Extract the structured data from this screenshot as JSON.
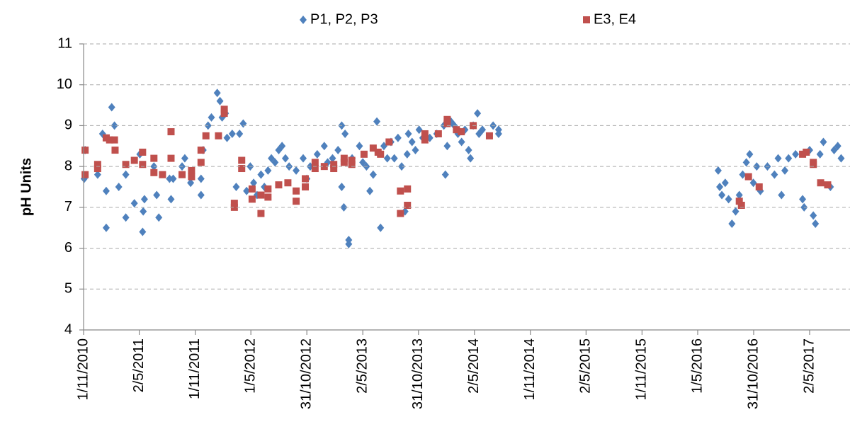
{
  "chart_data": {
    "type": "scatter",
    "ylabel": "pH Units",
    "ylim": [
      4,
      11
    ],
    "yticks": [
      4,
      5,
      6,
      7,
      8,
      9,
      10,
      11
    ],
    "xlim": [
      "2010-11-01",
      "2017-09-11"
    ],
    "xticks": [
      {
        "value": "2010-11-01",
        "label": "1/11/2010"
      },
      {
        "value": "2011-05-02",
        "label": "2/5/2011"
      },
      {
        "value": "2011-11-01",
        "label": "1/11/2011"
      },
      {
        "value": "2012-05-01",
        "label": "1/5/2012"
      },
      {
        "value": "2012-10-31",
        "label": "31/10/2012"
      },
      {
        "value": "2013-05-02",
        "label": "2/5/2013"
      },
      {
        "value": "2013-10-31",
        "label": "31/10/2013"
      },
      {
        "value": "2014-05-02",
        "label": "2/5/2014"
      },
      {
        "value": "2014-11-01",
        "label": "1/11/2014"
      },
      {
        "value": "2015-05-02",
        "label": "2/5/2015"
      },
      {
        "value": "2015-11-01",
        "label": "1/11/2015"
      },
      {
        "value": "2016-05-01",
        "label": "1/5/2016"
      },
      {
        "value": "2016-10-31",
        "label": "31/10/2016"
      },
      {
        "value": "2017-05-02",
        "label": "2/5/2017"
      }
    ],
    "grid": true,
    "legend": "top",
    "series": [
      {
        "name": "P1, P2, P3",
        "color": "#4f81bd",
        "marker": "diamond",
        "x": [
          "2010-11-06",
          "2010-11-03",
          "2010-12-17",
          "2011-01-02",
          "2011-01-14",
          "2011-01-14",
          "2011-02-01",
          "2011-02-10",
          "2011-02-24",
          "2011-03-19",
          "2011-03-19",
          "2011-04-16",
          "2011-05-04",
          "2011-05-13",
          "2011-05-15",
          "2011-05-19",
          "2011-06-19",
          "2011-06-28",
          "2011-07-05",
          "2011-08-09",
          "2011-08-14",
          "2011-08-21",
          "2011-09-19",
          "2011-09-28",
          "2011-10-17",
          "2011-11-20",
          "2011-11-20",
          "2011-11-27",
          "2011-12-13",
          "2011-12-24",
          "2012-01-12",
          "2012-01-21",
          "2012-01-28",
          "2012-02-08",
          "2012-02-13",
          "2012-03-01",
          "2012-03-14",
          "2012-03-25",
          "2012-04-06",
          "2012-04-17",
          "2012-04-29",
          "2012-05-10",
          "2012-05-21",
          "2012-06-03",
          "2012-06-14",
          "2012-06-26",
          "2012-07-07",
          "2012-07-19",
          "2012-07-31",
          "2012-08-11",
          "2012-08-22",
          "2012-09-03",
          "2012-09-26",
          "2012-10-19",
          "2012-10-31",
          "2012-11-11",
          "2012-12-04",
          "2012-12-27",
          "2013-01-07",
          "2013-01-23",
          "2013-02-10",
          "2013-02-22",
          "2013-02-22",
          "2013-03-01",
          "2013-03-05",
          "2013-03-17",
          "2013-03-17",
          "2013-03-28",
          "2013-04-21",
          "2013-05-02",
          "2013-05-14",
          "2013-05-25",
          "2013-06-05",
          "2013-06-17",
          "2013-06-29",
          "2013-07-10",
          "2013-07-21",
          "2013-08-02",
          "2013-08-13",
          "2013-08-25",
          "2013-09-06",
          "2013-09-17",
          "2013-09-24",
          "2013-09-28",
          "2013-10-10",
          "2013-10-21",
          "2013-11-02",
          "2013-11-14",
          "2013-12-07",
          "2013-12-30",
          "2014-01-22",
          "2014-01-27",
          "2014-02-02",
          "2014-02-14",
          "2014-02-25",
          "2014-03-09",
          "2014-03-21",
          "2014-04-01",
          "2014-04-13",
          "2014-04-19",
          "2014-04-28",
          "2014-05-12",
          "2014-05-17",
          "2014-05-28",
          "2014-07-02",
          "2014-07-20",
          "2014-07-20",
          "2016-07-07",
          "2016-07-12",
          "2016-07-19",
          "2016-07-30",
          "2016-08-10",
          "2016-08-21",
          "2016-09-02",
          "2016-09-14",
          "2016-09-25",
          "2016-10-07",
          "2016-10-18",
          "2016-10-30",
          "2016-11-10",
          "2016-11-22",
          "2016-12-15",
          "2017-01-07",
          "2017-01-19",
          "2017-01-30",
          "2017-02-10",
          "2017-02-22",
          "2017-03-17",
          "2017-04-09",
          "2017-04-14",
          "2017-05-02",
          "2017-05-14",
          "2017-05-21",
          "2017-06-05",
          "2017-06-16",
          "2017-07-09",
          "2017-07-21",
          "2017-08-02",
          "2017-08-13"
        ],
        "values": [
          8.4,
          7.7,
          7.8,
          8.8,
          6.5,
          7.4,
          9.45,
          9.0,
          7.5,
          6.75,
          7.8,
          7.1,
          8.3,
          6.4,
          6.9,
          7.2,
          8.0,
          7.3,
          6.75,
          7.7,
          7.2,
          7.7,
          8.0,
          8.2,
          7.6,
          7.3,
          7.7,
          8.4,
          9.0,
          9.2,
          9.8,
          9.6,
          9.2,
          9.3,
          8.7,
          8.8,
          7.5,
          8.8,
          9.05,
          7.4,
          8.0,
          7.6,
          7.3,
          7.8,
          7.5,
          7.9,
          8.2,
          8.1,
          8.4,
          8.5,
          8.2,
          8.0,
          7.9,
          8.2,
          7.7,
          8.0,
          8.3,
          8.5,
          8.1,
          8.2,
          8.4,
          9.0,
          7.5,
          7.0,
          8.8,
          6.2,
          6.1,
          8.2,
          8.5,
          8.1,
          8.0,
          7.4,
          7.8,
          9.1,
          6.5,
          8.5,
          8.2,
          8.6,
          8.2,
          8.7,
          8.0,
          6.9,
          8.3,
          8.8,
          8.6,
          8.4,
          8.9,
          8.7,
          8.7,
          8.8,
          9.0,
          7.8,
          8.5,
          9.1,
          9.0,
          8.8,
          8.6,
          8.9,
          8.4,
          8.2,
          9.0,
          9.3,
          8.8,
          8.9,
          9.0,
          8.9,
          8.8,
          7.9,
          7.5,
          7.3,
          7.6,
          7.2,
          6.6,
          6.9,
          7.3,
          7.8,
          8.1,
          8.3,
          7.6,
          8.0,
          7.4,
          8.0,
          7.8,
          8.2,
          7.3,
          7.9,
          8.2,
          8.3,
          7.2,
          7.0,
          8.4,
          6.8,
          6.6,
          8.3,
          8.6,
          7.5,
          8.4,
          8.5,
          8.2
        ]
      },
      {
        "name": "E3, E4",
        "color": "#c0504d",
        "marker": "square",
        "x": [
          "2010-11-06",
          "2010-11-06",
          "2010-12-17",
          "2010-12-17",
          "2011-01-14",
          "2011-01-25",
          "2011-02-10",
          "2011-02-12",
          "2011-03-19",
          "2011-04-16",
          "2011-05-13",
          "2011-05-13",
          "2011-06-19",
          "2011-06-19",
          "2011-07-17",
          "2011-08-14",
          "2011-08-14",
          "2011-09-19",
          "2011-10-20",
          "2011-10-20",
          "2011-11-20",
          "2011-11-20",
          "2011-12-06",
          "2012-01-16",
          "2012-02-04",
          "2012-02-04",
          "2012-03-08",
          "2012-03-08",
          "2012-04-01",
          "2012-04-01",
          "2012-05-05",
          "2012-05-05",
          "2012-06-03",
          "2012-06-03",
          "2012-06-26",
          "2012-06-26",
          "2012-07-31",
          "2012-08-30",
          "2012-09-26",
          "2012-09-26",
          "2012-10-26",
          "2012-10-26",
          "2012-11-27",
          "2012-11-27",
          "2012-12-27",
          "2013-01-27",
          "2013-01-27",
          "2013-03-02",
          "2013-03-02",
          "2013-03-27",
          "2013-03-27",
          "2013-05-06",
          "2013-06-05",
          "2013-06-21",
          "2013-06-29",
          "2013-07-27",
          "2013-09-02",
          "2013-09-02",
          "2013-09-25",
          "2013-09-25",
          "2013-11-21",
          "2013-11-21",
          "2014-01-04",
          "2014-02-02",
          "2014-02-02",
          "2014-03-04",
          "2014-03-20",
          "2014-04-28",
          "2014-06-20",
          "2016-09-14",
          "2016-09-21",
          "2016-10-14",
          "2016-11-18",
          "2017-04-09",
          "2017-04-21",
          "2017-05-14",
          "2017-05-14",
          "2017-06-07",
          "2017-06-30"
        ],
        "values": [
          8.4,
          7.8,
          8.05,
          7.95,
          8.7,
          8.65,
          8.65,
          8.4,
          8.05,
          8.15,
          8.35,
          8.05,
          7.85,
          8.2,
          7.8,
          8.2,
          8.85,
          7.8,
          7.9,
          7.75,
          8.1,
          8.4,
          8.75,
          8.75,
          9.3,
          9.4,
          7.1,
          7.0,
          8.15,
          7.95,
          7.45,
          7.2,
          6.85,
          7.3,
          7.25,
          7.45,
          7.55,
          7.6,
          7.4,
          7.15,
          7.7,
          7.5,
          8.1,
          7.95,
          8.0,
          7.95,
          8.05,
          8.1,
          8.2,
          8.05,
          8.15,
          8.3,
          8.45,
          8.35,
          8.3,
          8.6,
          7.4,
          6.85,
          7.45,
          7.05,
          8.8,
          8.65,
          8.8,
          9.15,
          9.05,
          8.9,
          8.85,
          9.0,
          8.75,
          7.15,
          7.05,
          7.75,
          7.5,
          8.3,
          8.35,
          8.1,
          8.05,
          7.6,
          7.55
        ]
      }
    ]
  }
}
